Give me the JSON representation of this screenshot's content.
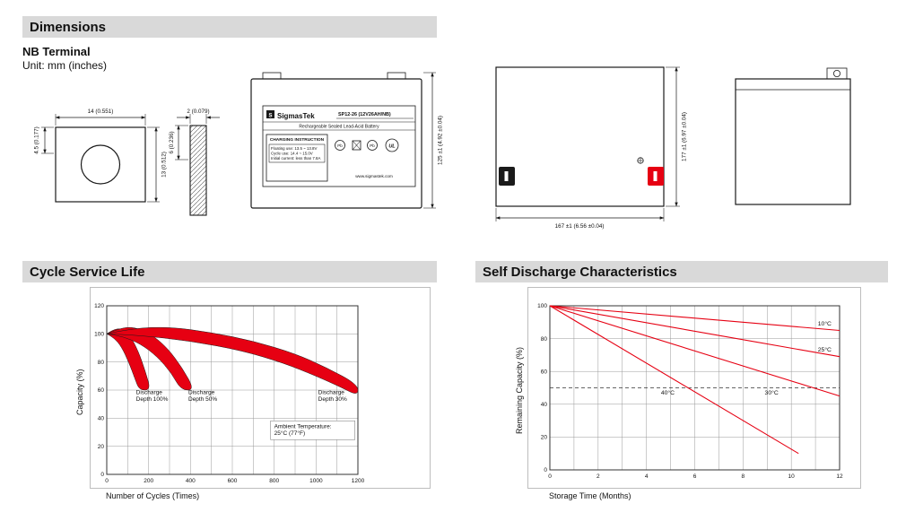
{
  "sections": {
    "dimensions": "Dimensions"
  },
  "dims": {
    "terminal_type": "NB Terminal",
    "unit_note": "Unit: mm (inches)",
    "terminal_front": {
      "width": "14 (0.551)",
      "offset": "4.5 (0.177)",
      "height": "13 (0.512)"
    },
    "terminal_side": {
      "thickness": "2 (0.079)",
      "depth": "6 (0.236)"
    },
    "front_view": {
      "brand": "SigmasTek",
      "brand_initial": "S",
      "model": "SP12-26 (12V26AH/NB)",
      "type_line": "Rechargeable Sealed Lead-Acid Battery",
      "charging_title": "CHARGING INSTRUCTION",
      "charging_line1": "Floating use: 13.5 ~ 13.8V",
      "charging_line2": "Cycle use: 14.4 ~ 15.0V",
      "charging_line3": "Initial current: less than 7.8A",
      "pb": "Pb",
      "ul": "UL",
      "website": "www.sigmastek.com",
      "height_dim": "125 ±1 (4.92 ±0.04)"
    },
    "side_view": {
      "height_dim": "177 ±1 (6.97 ±0.04)",
      "length_dim": "167 ±1 (6.56 ±0.04)"
    }
  },
  "chart_data": [
    {
      "id": "cycle-service-life",
      "type": "area",
      "title": "Cycle Service Life",
      "xlabel": "Number of Cycles (Times)",
      "ylabel": "Capacity (%)",
      "xlim": [
        0,
        1200
      ],
      "ylim": [
        0,
        120
      ],
      "x_ticks": [
        0,
        200,
        400,
        600,
        800,
        1000,
        1200
      ],
      "y_ticks": [
        0,
        20,
        40,
        60,
        80,
        100,
        120
      ],
      "x_grid_step": 100,
      "y_grid_step": 20,
      "band_color": "#e60012",
      "bands": [
        {
          "label": "Discharge\nDepth 100%",
          "label_pos": [
            140,
            57
          ],
          "upper": [
            [
              0,
              100
            ],
            [
              30,
              103
            ],
            [
              70,
              104
            ],
            [
              110,
              99
            ],
            [
              150,
              88
            ],
            [
              185,
              73
            ],
            [
              210,
              60
            ]
          ],
          "lower": [
            [
              0,
              100
            ],
            [
              35,
              97
            ],
            [
              70,
              91
            ],
            [
              105,
              80
            ],
            [
              135,
              68
            ],
            [
              155,
              60
            ]
          ]
        },
        {
          "label": "Discharge\nDepth 50%",
          "label_pos": [
            390,
            57
          ],
          "upper": [
            [
              0,
              100
            ],
            [
              60,
              104
            ],
            [
              130,
              105
            ],
            [
              210,
              100
            ],
            [
              290,
              90
            ],
            [
              360,
              76
            ],
            [
              420,
              60
            ]
          ],
          "lower": [
            [
              0,
              100
            ],
            [
              80,
              98
            ],
            [
              160,
              93
            ],
            [
              240,
              84
            ],
            [
              310,
              72
            ],
            [
              355,
              60
            ]
          ]
        },
        {
          "label": "Discharge\nDepth 30%",
          "label_pos": [
            1010,
            57
          ],
          "upper": [
            [
              0,
              100
            ],
            [
              120,
              104
            ],
            [
              300,
              105
            ],
            [
              500,
              101
            ],
            [
              700,
              95
            ],
            [
              900,
              86
            ],
            [
              1050,
              76
            ],
            [
              1200,
              64
            ]
          ],
          "lower": [
            [
              0,
              100
            ],
            [
              150,
              99
            ],
            [
              400,
              95
            ],
            [
              650,
              88
            ],
            [
              850,
              79
            ],
            [
              1000,
              70
            ],
            [
              1120,
              62
            ],
            [
              1200,
              56
            ]
          ]
        }
      ],
      "annotation": "Ambient Temperature:\n25°C (77°F)",
      "annotation_pos": [
        800,
        33
      ]
    },
    {
      "id": "self-discharge-characteristics",
      "type": "line",
      "title": "Self Discharge Characteristics",
      "xlabel": "Storage Time (Months)",
      "ylabel": "Remaining Capacity (%)",
      "xlim": [
        0,
        12
      ],
      "ylim": [
        0,
        100
      ],
      "x_ticks": [
        0,
        2,
        4,
        6,
        8,
        10,
        12
      ],
      "y_ticks": [
        0,
        20,
        40,
        60,
        80,
        100
      ],
      "x_grid_step": 1,
      "y_grid_step": 20,
      "line_color": "#e60012",
      "dashed_y": 50,
      "series": [
        {
          "name": "10°C",
          "points": [
            [
              0,
              100
            ],
            [
              12,
              85
            ]
          ],
          "label_pos": [
            11.1,
            88
          ]
        },
        {
          "name": "25°C",
          "points": [
            [
              0,
              100
            ],
            [
              12,
              69
            ]
          ],
          "label_pos": [
            11.1,
            72
          ]
        },
        {
          "name": "30°C",
          "points": [
            [
              0,
              100
            ],
            [
              12,
              45
            ]
          ],
          "label_pos": [
            8.9,
            46
          ]
        },
        {
          "name": "40°C",
          "points": [
            [
              0,
              100
            ],
            [
              10.3,
              10
            ]
          ],
          "label_pos": [
            4.6,
            46
          ]
        }
      ]
    }
  ]
}
